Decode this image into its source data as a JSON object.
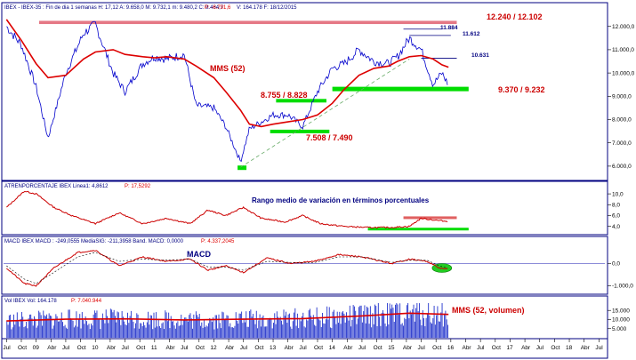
{
  "headers": {
    "price": "IBEX - IBEX-35 : Fin de dia 1 semanas H: 17,12 A: 9.658,0 M: 9.732,1 m: 9.480,2 C: 9.484,7",
    "price_p": "P: -6.791,6",
    "price_v": "V: 164.178 F: 18/12/2015",
    "atr": "ATRENPORCENTAJE  IBEX Linea1: 4,8612",
    "atr_p": "P: 17,5292",
    "macd": "MACD  IBEX MACD : -249,0555 MediaSIG: -211,3958 Band. MACD: 0,0000",
    "macd_p": "P: 4.337,2045",
    "vol": "Vol  IBEX Vol: 164.178",
    "vol_p": "P: 7.040.944"
  },
  "annotations": {
    "resistance": "12.240 / 12.102",
    "high1": "11.884",
    "high2": "11.612",
    "level3": "10.631",
    "mms": "MMS (52)",
    "support_top": "8.755 / 8.828",
    "support_bottom": "7.508 / 7.490",
    "support_main": "9.370 / 9.232",
    "atr_title": "Rango medio de variación en términos porcentuales",
    "macd_title": "MACD",
    "vol_title": "MMS (52, volumen)"
  },
  "chart_data": {
    "type": "line",
    "price": {
      "ylim": [
        5500,
        12600
      ],
      "yticks": [
        "12.000,0",
        "11.000,0",
        "10.000,0",
        "9.000,0",
        "8.000,0",
        "7.000,0",
        "6.000,0"
      ],
      "ytick_values": [
        12000,
        11000,
        10000,
        9000,
        8000,
        7000,
        6000
      ],
      "x": [
        2008.5,
        2008.75,
        2009.0,
        2009.2,
        2009.5,
        2009.8,
        2010.0,
        2010.3,
        2010.5,
        2010.8,
        2011.0,
        2011.2,
        2011.5,
        2011.7,
        2012.0,
        2012.2,
        2012.45,
        2012.6,
        2012.8,
        2013.0,
        2013.25,
        2013.5,
        2013.75,
        2014.0,
        2014.2,
        2014.45,
        2014.7,
        2014.95,
        2015.1,
        2015.3,
        2015.5,
        2015.7,
        2015.85,
        2015.96
      ],
      "close": [
        12000,
        11200,
        9400,
        7200,
        10000,
        11700,
        12100,
        10000,
        9200,
        10400,
        10700,
        10600,
        10800,
        8600,
        8500,
        7700,
        6200,
        7600,
        7900,
        8200,
        8200,
        7700,
        9200,
        10200,
        10400,
        11000,
        10500,
        10400,
        10700,
        11500,
        11000,
        9500,
        10000,
        9480
      ],
      "mms52": [
        12300,
        11400,
        10400,
        9800,
        9900,
        10600,
        10900,
        11000,
        10800,
        10700,
        10650,
        10700,
        10600,
        10300,
        9800,
        9200,
        8400,
        7800,
        7700,
        7800,
        7900,
        8000,
        8200,
        8700,
        9300,
        9900,
        10200,
        10300,
        10500,
        10700,
        10750,
        10600,
        10350,
        10250
      ]
    },
    "atr": {
      "ylim": [
        2.8,
        11.0
      ],
      "yticks": [
        "10,0",
        "8,0",
        "6,0",
        "4,0"
      ],
      "ytick_values": [
        10,
        8,
        6,
        4
      ],
      "x": [
        2008.5,
        2008.8,
        2009.0,
        2009.3,
        2009.6,
        2010.0,
        2010.4,
        2010.8,
        2011.2,
        2011.6,
        2011.9,
        2012.2,
        2012.5,
        2012.8,
        2013.2,
        2013.5,
        2013.8,
        2014.2,
        2014.6,
        2015.0,
        2015.3,
        2015.5,
        2015.7,
        2015.96
      ],
      "values": [
        7.5,
        10.5,
        10.0,
        7.5,
        6.0,
        4.5,
        6.5,
        4.5,
        5.5,
        4.5,
        7.0,
        6.0,
        7.5,
        5.5,
        4.8,
        6.0,
        4.5,
        4.0,
        3.8,
        3.8,
        4.0,
        5.5,
        5.2,
        4.9
      ]
    },
    "macd": {
      "ylim": [
        -1300,
        900
      ],
      "yticks": [
        "0,0",
        "-1.000,0"
      ],
      "ytick_values": [
        0,
        -1000
      ],
      "x": [
        2008.5,
        2008.8,
        2009.0,
        2009.3,
        2009.7,
        2010.0,
        2010.4,
        2010.8,
        2011.2,
        2011.6,
        2011.9,
        2012.2,
        2012.5,
        2012.9,
        2013.3,
        2013.7,
        2014.1,
        2014.5,
        2015.0,
        2015.3,
        2015.6,
        2015.8,
        2015.96
      ],
      "macd": [
        -200,
        -900,
        -1000,
        -200,
        500,
        600,
        -100,
        300,
        100,
        200,
        -300,
        -100,
        -400,
        250,
        0,
        100,
        400,
        300,
        0,
        200,
        100,
        -200,
        -249
      ],
      "signal": [
        -100,
        -700,
        -900,
        -400,
        300,
        500,
        100,
        200,
        150,
        200,
        -150,
        -150,
        -300,
        100,
        50,
        50,
        300,
        300,
        50,
        150,
        150,
        -100,
        -211
      ]
    },
    "volume": {
      "ylim": [
        0,
        19000
      ],
      "yticks": [
        "15.000",
        "10.000",
        "5.000"
      ],
      "ytick_values": [
        15000,
        10000,
        5000
      ],
      "mms52_x": [
        2008.5,
        2009.5,
        2010.5,
        2011.5,
        2012.5,
        2013.5,
        2014.5,
        2015.3,
        2015.96
      ],
      "mms52": [
        9200,
        10200,
        10400,
        9800,
        10200,
        10500,
        12000,
        13500,
        12800
      ]
    },
    "x_axis": {
      "labels": [
        "Jul",
        "Oct",
        "09",
        "Abr",
        "Jul",
        "Oct",
        "10",
        "Abr",
        "Jul",
        "Oct",
        "11",
        "Abr",
        "Jul",
        "Oct",
        "12",
        "Abr",
        "Jul",
        "Oct",
        "13",
        "Abr",
        "Jul",
        "Oct",
        "14",
        "Abr",
        "Jul",
        "Oct",
        "15",
        "Abr",
        "Jul",
        "Oct",
        "16",
        "Abr",
        "Jul",
        "Oct",
        "17",
        "Abr",
        "Jul",
        "Oct",
        "18",
        "Abr",
        "Jul"
      ],
      "values": [
        2008.5,
        2008.75,
        2009.0,
        2009.25,
        2009.5,
        2009.75,
        2010.0,
        2010.25,
        2010.5,
        2010.75,
        2011.0,
        2011.25,
        2011.5,
        2011.75,
        2012.0,
        2012.25,
        2012.5,
        2012.75,
        2013.0,
        2013.25,
        2013.5,
        2013.75,
        2014.0,
        2014.25,
        2014.5,
        2014.75,
        2015.0,
        2015.25,
        2015.5,
        2015.75,
        2016.0,
        2016.25,
        2016.5,
        2016.75,
        2017.0,
        2017.25,
        2017.5,
        2017.75,
        2018.0,
        2018.25,
        2018.5
      ],
      "range": [
        2008.45,
        2018.6
      ]
    },
    "levels": {
      "resistance": [
        12240,
        12102
      ],
      "high1": 11884,
      "high2": 11612,
      "level3": 10631,
      "support_top": [
        8755,
        8828
      ],
      "support_bottom": [
        7508,
        7490
      ],
      "support_main": [
        9370,
        9232
      ],
      "trendline": {
        "x": [
          2012.45,
          2015.3
        ],
        "y": [
          5950,
          10600
        ]
      }
    },
    "colors": {
      "price": "#0000cc",
      "mms": "#dd0000",
      "support": "#00dd00",
      "resistance": "#e06070",
      "trend": "#66aa66",
      "frame": "#000080",
      "volume": "#2233cc",
      "atr_band": "#e06060"
    }
  }
}
